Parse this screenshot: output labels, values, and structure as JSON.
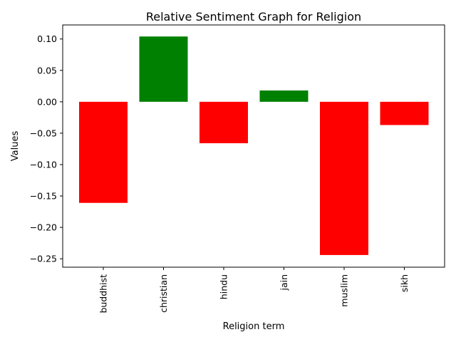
{
  "chart_data": {
    "type": "bar",
    "title": "Relative Sentiment Graph for Religion",
    "xlabel": "Religion term",
    "ylabel": "Values",
    "categories": [
      "buddhist",
      "christian",
      "hindu",
      "jain",
      "muslim",
      "sikh"
    ],
    "values": [
      -0.161,
      0.104,
      -0.066,
      0.018,
      -0.244,
      -0.037
    ],
    "colors": [
      "#ff0000",
      "#008000",
      "#ff0000",
      "#008000",
      "#ff0000",
      "#ff0000"
    ],
    "ylim": [
      -0.2634,
      0.1224
    ],
    "yticks": [
      0.1,
      0.05,
      0.0,
      -0.05,
      -0.1,
      -0.15,
      -0.2,
      -0.25
    ],
    "ytick_labels": [
      "0.10",
      "0.05",
      "0.00",
      "−0.05",
      "−0.10",
      "−0.15",
      "−0.20",
      "−0.25"
    ],
    "grid": false,
    "legend": "none"
  }
}
